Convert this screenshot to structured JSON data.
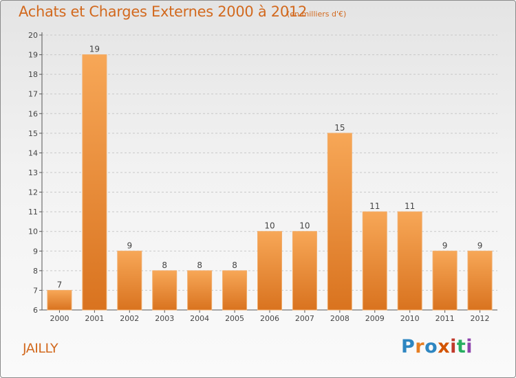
{
  "header": {
    "title": "Achats et Charges Externes 2000 à 2012",
    "subtitle": "(en milliers d'€)"
  },
  "footer": {
    "commune": "JAILLY",
    "logo_text": "Proxiti",
    "logo_colors": [
      "#2e86c1",
      "#e67e22",
      "#2e86c1",
      "#d35400",
      "#c0392b",
      "#27ae60",
      "#8e44ad"
    ]
  },
  "colors": {
    "accent": "#d2691e",
    "bar_light": "#f7a757",
    "bar_dark": "#d9731f"
  },
  "chart_data": {
    "type": "bar",
    "title": "Achats et Charges Externes 2000 à 2012",
    "subtitle": "(en milliers d'€)",
    "categories": [
      "2000",
      "2001",
      "2002",
      "2003",
      "2004",
      "2005",
      "2006",
      "2007",
      "2008",
      "2009",
      "2010",
      "2011",
      "2012"
    ],
    "values": [
      7,
      19,
      9,
      8,
      8,
      8,
      10,
      10,
      15,
      11,
      11,
      9,
      9
    ],
    "ylim": [
      6,
      20
    ],
    "yticks": [
      6,
      7,
      8,
      9,
      10,
      11,
      12,
      13,
      14,
      15,
      16,
      17,
      18,
      19,
      20
    ],
    "grid": "horizontal-dashed",
    "data_labels": true,
    "legend": "none"
  }
}
